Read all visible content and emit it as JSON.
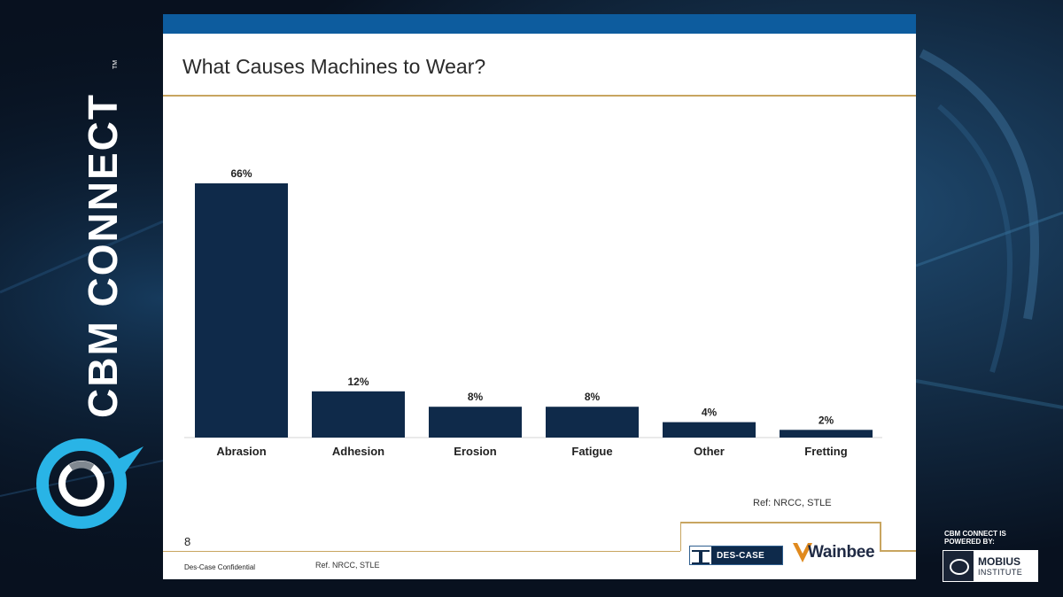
{
  "brand": {
    "name": "CBM CONNECT",
    "trademark": "TM",
    "powered_by": "CBM CONNECT IS POWERED BY:",
    "mobius_title": "MOBIUS",
    "mobius_sub": "INSTITUTE"
  },
  "slide": {
    "title": "What Causes Machines to Wear?",
    "page_number": "8",
    "confidential": "Des-Case Confidential",
    "ref_footer": "Ref. NRCC, STLE",
    "ref_chart": "Ref: NRCC, STLE",
    "logos": {
      "descase": "DES-CASE",
      "wainbee": "Wainbee"
    }
  },
  "colors": {
    "bar": "#0f2a4a",
    "title_rule": "#c8a560",
    "top_bar": "#0d5c9e",
    "brand_cyan": "#29b4e6"
  },
  "chart_data": {
    "type": "bar",
    "title": "",
    "categories": [
      "Abrasion",
      "Adhesion",
      "Erosion",
      "Fatigue",
      "Other",
      "Fretting"
    ],
    "values": [
      66,
      12,
      8,
      8,
      4,
      2
    ],
    "data_labels": [
      "66%",
      "12%",
      "8%",
      "8%",
      "4%",
      "2%"
    ],
    "xlabel": "",
    "ylabel": "",
    "ylim": [
      0,
      66
    ],
    "grid": false,
    "legend": "none"
  }
}
